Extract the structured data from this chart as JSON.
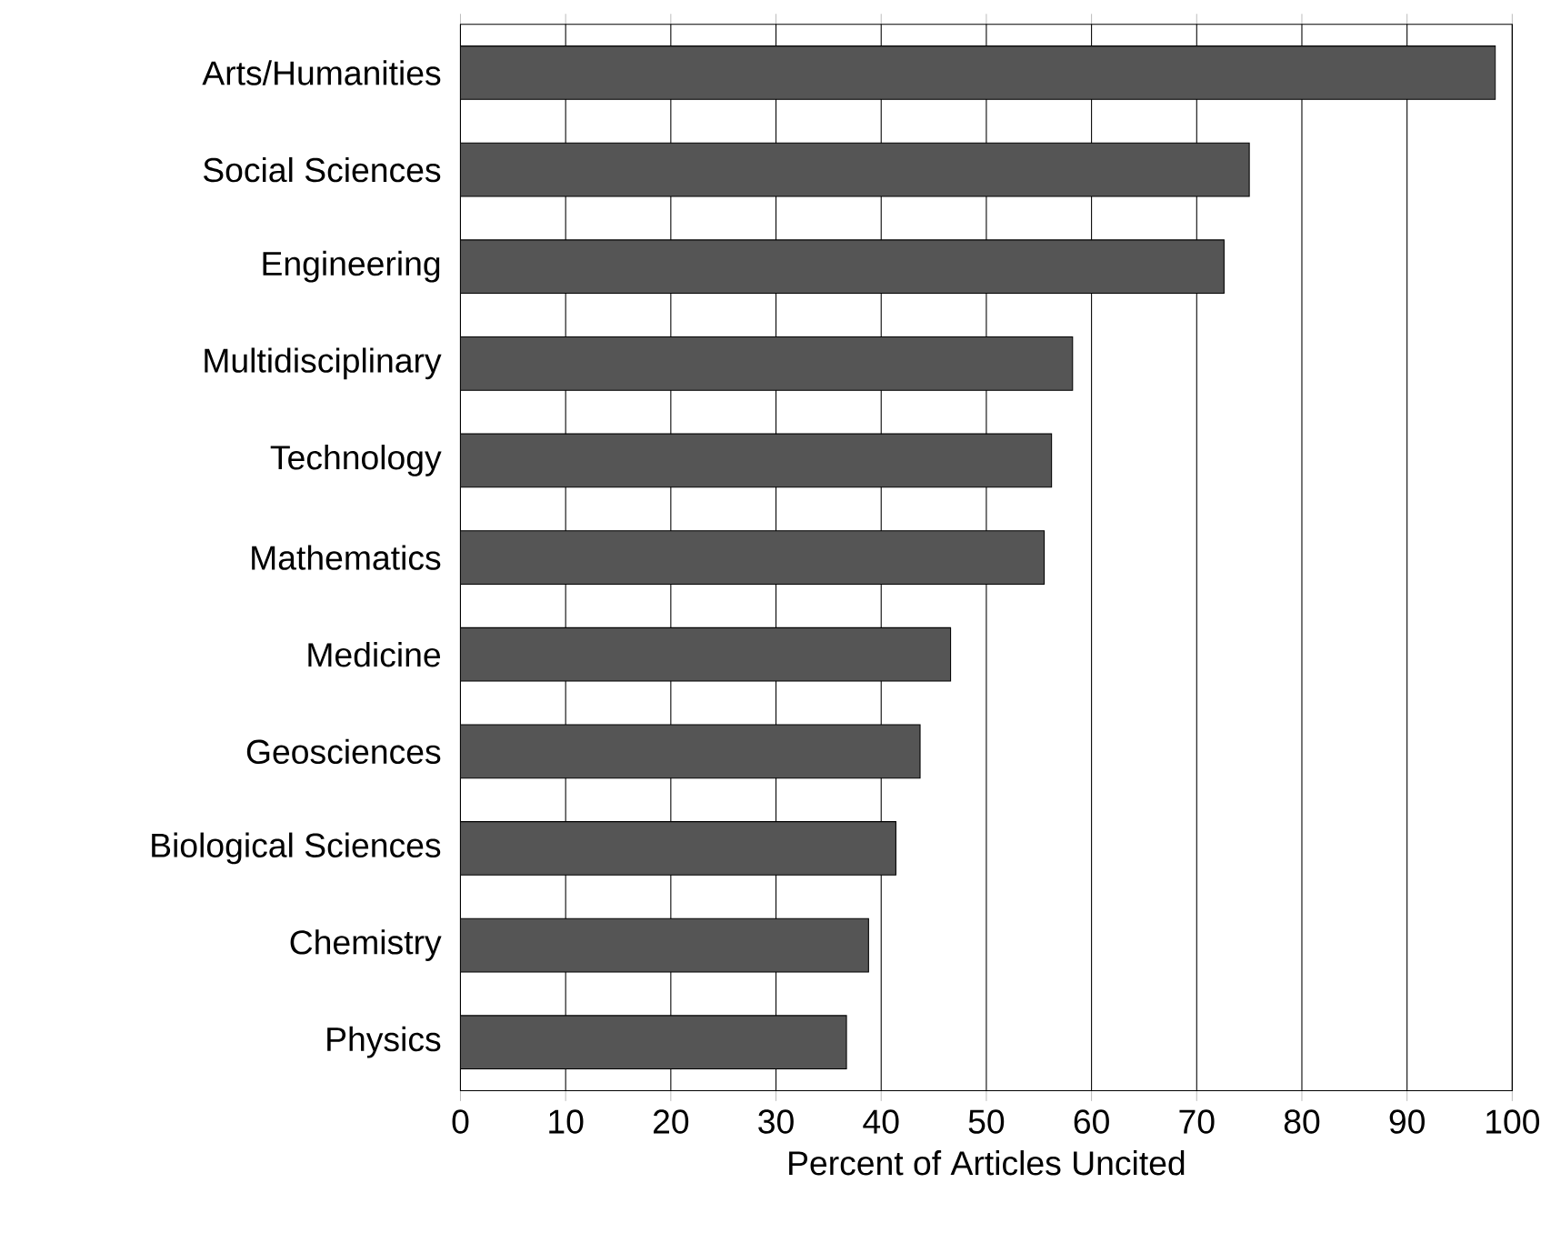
{
  "chart_data": {
    "type": "bar",
    "orientation": "horizontal",
    "xlabel": "Percent of Articles Uncited",
    "categories": [
      "Arts/Humanities",
      "Social Sciences",
      "Engineering",
      "Multidisciplinary",
      "Technology",
      "Mathematics",
      "Medicine",
      "Geosciences",
      "Biological Sciences",
      "Chemistry",
      "Physics"
    ],
    "values": [
      98.4,
      75.0,
      72.6,
      58.2,
      56.2,
      55.5,
      46.6,
      43.7,
      41.4,
      38.8,
      36.7
    ],
    "color": "#555555",
    "xlim": [
      0,
      100
    ],
    "xticks": [
      0,
      10,
      20,
      30,
      40,
      50,
      60,
      70,
      80,
      90,
      100
    ],
    "grid": "x"
  }
}
